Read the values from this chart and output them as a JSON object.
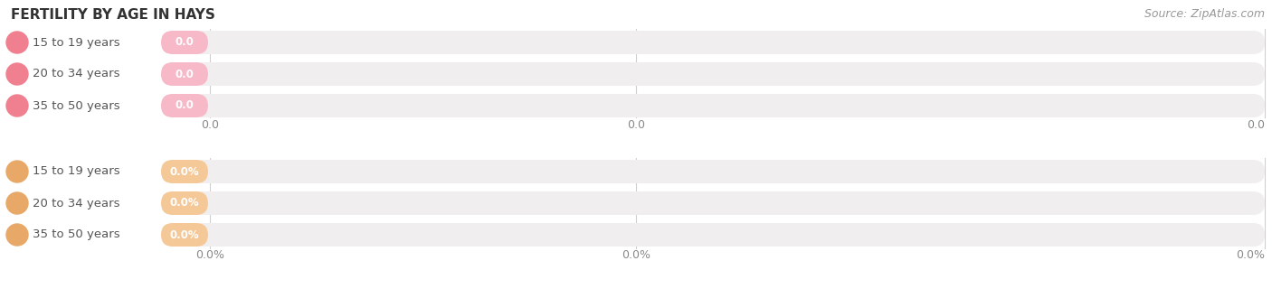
{
  "title": "FERTILITY BY AGE IN HAYS",
  "source": "Source: ZipAtlas.com",
  "background_color": "#ffffff",
  "groups": [
    {
      "rows": [
        {
          "label": "15 to 19 years",
          "value_str": "0.0"
        },
        {
          "label": "20 to 34 years",
          "value_str": "0.0"
        },
        {
          "label": "35 to 50 years",
          "value_str": "0.0"
        }
      ],
      "bar_color": "#f7b8c8",
      "dot_color": "#f08090",
      "track_color": "#f0eeee",
      "track_border": "#e0dede",
      "axis_label": "0.0"
    },
    {
      "rows": [
        {
          "label": "15 to 19 years",
          "value_str": "0.0%"
        },
        {
          "label": "20 to 34 years",
          "value_str": "0.0%"
        },
        {
          "label": "35 to 50 years",
          "value_str": "0.0%"
        }
      ],
      "bar_color": "#f5c898",
      "dot_color": "#e8a868",
      "track_color": "#f0eeee",
      "track_border": "#e0dede",
      "axis_label": "0.0%"
    }
  ],
  "title_fontsize": 11,
  "label_fontsize": 9.5,
  "value_fontsize": 8.5,
  "axis_label_fontsize": 9,
  "source_fontsize": 9
}
